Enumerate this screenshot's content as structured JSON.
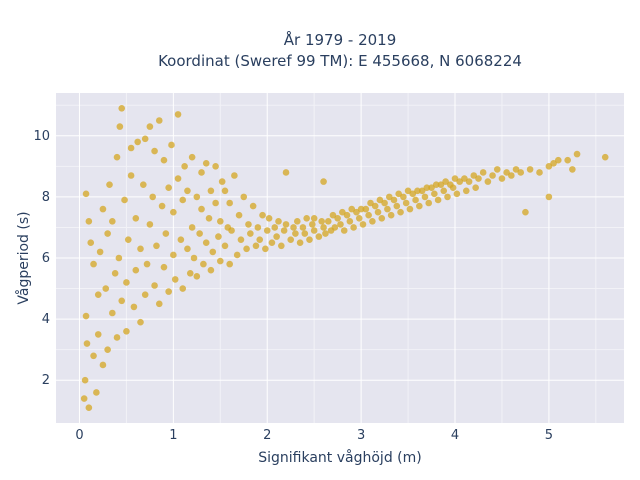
{
  "chart_data": {
    "type": "scatter",
    "title_line1": "År 1979 - 2019",
    "title_line2": "Koordinat (Sweref 99 TM): E 455668, N 6068224",
    "xlabel": "Signifikant våghöjd (m)",
    "ylabel": "Vågperiod (s)",
    "xlim": [
      -0.25,
      5.8
    ],
    "ylim": [
      0.6,
      11.4
    ],
    "x_ticks": [
      0,
      1,
      2,
      3,
      4,
      5
    ],
    "x_tick_labels": [
      "0",
      "1",
      "2",
      "3",
      "4",
      "5"
    ],
    "y_ticks": [
      2,
      4,
      6,
      8,
      10
    ],
    "y_tick_labels": [
      "2",
      "4",
      "6",
      "8",
      "10"
    ],
    "x_minor_ticks": [
      0.5,
      1.5,
      2.5,
      3.5,
      4.5,
      5.5
    ],
    "y_minor_ticks": [
      3,
      5,
      7,
      9,
      11
    ],
    "grid": true,
    "marker_color": "#d4a521",
    "plot_background": "#e5e5ef",
    "series": [
      {
        "points": [
          [
            0.05,
            1.4
          ],
          [
            0.06,
            2.0
          ],
          [
            0.07,
            4.1
          ],
          [
            0.07,
            8.1
          ],
          [
            0.08,
            3.2
          ],
          [
            0.1,
            1.1
          ],
          [
            0.1,
            7.2
          ],
          [
            0.12,
            6.5
          ],
          [
            0.15,
            5.8
          ],
          [
            0.15,
            2.8
          ],
          [
            0.18,
            1.6
          ],
          [
            0.2,
            3.5
          ],
          [
            0.2,
            4.8
          ],
          [
            0.22,
            6.2
          ],
          [
            0.25,
            7.6
          ],
          [
            0.25,
            2.5
          ],
          [
            0.28,
            5.0
          ],
          [
            0.3,
            3.0
          ],
          [
            0.3,
            6.8
          ],
          [
            0.32,
            8.4
          ],
          [
            0.35,
            4.2
          ],
          [
            0.35,
            7.2
          ],
          [
            0.38,
            5.5
          ],
          [
            0.4,
            3.4
          ],
          [
            0.4,
            9.3
          ],
          [
            0.42,
            6.0
          ],
          [
            0.43,
            10.3
          ],
          [
            0.45,
            4.6
          ],
          [
            0.45,
            10.9
          ],
          [
            0.48,
            7.9
          ],
          [
            0.5,
            3.6
          ],
          [
            0.5,
            5.2
          ],
          [
            0.52,
            6.6
          ],
          [
            0.55,
            9.6
          ],
          [
            0.55,
            8.7
          ],
          [
            0.58,
            4.4
          ],
          [
            0.6,
            7.3
          ],
          [
            0.6,
            5.6
          ],
          [
            0.62,
            9.8
          ],
          [
            0.65,
            3.9
          ],
          [
            0.65,
            6.3
          ],
          [
            0.68,
            8.4
          ],
          [
            0.7,
            9.9
          ],
          [
            0.7,
            4.8
          ],
          [
            0.72,
            5.8
          ],
          [
            0.75,
            7.1
          ],
          [
            0.75,
            10.3
          ],
          [
            0.78,
            8.0
          ],
          [
            0.8,
            5.1
          ],
          [
            0.8,
            9.5
          ],
          [
            0.82,
            6.4
          ],
          [
            0.85,
            10.5
          ],
          [
            0.85,
            4.5
          ],
          [
            0.88,
            7.7
          ],
          [
            0.9,
            5.7
          ],
          [
            0.9,
            9.2
          ],
          [
            0.92,
            6.8
          ],
          [
            0.95,
            8.3
          ],
          [
            0.95,
            4.9
          ],
          [
            0.98,
            9.7
          ],
          [
            1.0,
            6.1
          ],
          [
            1.0,
            7.5
          ],
          [
            1.02,
            5.3
          ],
          [
            1.05,
            10.7
          ],
          [
            1.05,
            8.6
          ],
          [
            1.08,
            6.6
          ],
          [
            1.1,
            5.0
          ],
          [
            1.1,
            7.9
          ],
          [
            1.12,
            9.0
          ],
          [
            1.15,
            6.3
          ],
          [
            1.15,
            8.2
          ],
          [
            1.18,
            5.5
          ],
          [
            1.2,
            7.0
          ],
          [
            1.2,
            9.3
          ],
          [
            1.22,
            6.0
          ],
          [
            1.25,
            8.0
          ],
          [
            1.25,
            5.4
          ],
          [
            1.28,
            6.8
          ],
          [
            1.3,
            7.6
          ],
          [
            1.3,
            8.8
          ],
          [
            1.32,
            5.8
          ],
          [
            1.35,
            6.5
          ],
          [
            1.35,
            9.1
          ],
          [
            1.38,
            7.3
          ],
          [
            1.4,
            5.6
          ],
          [
            1.4,
            8.2
          ],
          [
            1.42,
            6.2
          ],
          [
            1.45,
            7.8
          ],
          [
            1.45,
            9.0
          ],
          [
            1.48,
            6.7
          ],
          [
            1.5,
            5.9
          ],
          [
            1.5,
            7.2
          ],
          [
            1.52,
            8.5
          ],
          [
            1.55,
            6.4
          ],
          [
            1.55,
            8.2
          ],
          [
            1.58,
            7.0
          ],
          [
            1.6,
            5.8
          ],
          [
            1.6,
            7.8
          ],
          [
            1.62,
            6.9
          ],
          [
            1.65,
            8.7
          ],
          [
            1.68,
            6.1
          ],
          [
            1.7,
            7.4
          ],
          [
            1.72,
            6.6
          ],
          [
            1.75,
            8.0
          ],
          [
            1.78,
            6.3
          ],
          [
            1.8,
            7.1
          ],
          [
            1.82,
            6.8
          ],
          [
            1.85,
            7.7
          ],
          [
            1.88,
            6.4
          ],
          [
            1.9,
            7.0
          ],
          [
            1.92,
            6.6
          ],
          [
            1.95,
            7.4
          ],
          [
            1.98,
            6.3
          ],
          [
            2.0,
            6.9
          ],
          [
            2.02,
            7.3
          ],
          [
            2.05,
            6.5
          ],
          [
            2.08,
            7.0
          ],
          [
            2.1,
            6.7
          ],
          [
            2.12,
            7.2
          ],
          [
            2.15,
            6.4
          ],
          [
            2.18,
            6.9
          ],
          [
            2.2,
            8.8
          ],
          [
            2.2,
            7.1
          ],
          [
            2.25,
            6.6
          ],
          [
            2.28,
            7.0
          ],
          [
            2.3,
            6.8
          ],
          [
            2.32,
            7.2
          ],
          [
            2.35,
            6.5
          ],
          [
            2.38,
            7.0
          ],
          [
            2.4,
            6.8
          ],
          [
            2.42,
            7.3
          ],
          [
            2.45,
            6.6
          ],
          [
            2.48,
            7.1
          ],
          [
            2.5,
            6.9
          ],
          [
            2.5,
            7.3
          ],
          [
            2.55,
            6.7
          ],
          [
            2.58,
            7.2
          ],
          [
            2.6,
            7.0
          ],
          [
            2.6,
            8.5
          ],
          [
            2.62,
            6.8
          ],
          [
            2.65,
            7.2
          ],
          [
            2.68,
            6.9
          ],
          [
            2.7,
            7.4
          ],
          [
            2.72,
            7.0
          ],
          [
            2.75,
            7.3
          ],
          [
            2.78,
            7.1
          ],
          [
            2.8,
            7.5
          ],
          [
            2.82,
            6.9
          ],
          [
            2.85,
            7.4
          ],
          [
            2.88,
            7.2
          ],
          [
            2.9,
            7.6
          ],
          [
            2.92,
            7.0
          ],
          [
            2.95,
            7.5
          ],
          [
            2.98,
            7.3
          ],
          [
            3.0,
            7.6
          ],
          [
            3.02,
            7.1
          ],
          [
            3.05,
            7.6
          ],
          [
            3.08,
            7.4
          ],
          [
            3.1,
            7.8
          ],
          [
            3.12,
            7.2
          ],
          [
            3.15,
            7.7
          ],
          [
            3.18,
            7.5
          ],
          [
            3.2,
            7.9
          ],
          [
            3.22,
            7.3
          ],
          [
            3.25,
            7.8
          ],
          [
            3.28,
            7.6
          ],
          [
            3.3,
            8.0
          ],
          [
            3.32,
            7.4
          ],
          [
            3.35,
            7.9
          ],
          [
            3.38,
            7.7
          ],
          [
            3.4,
            8.1
          ],
          [
            3.42,
            7.5
          ],
          [
            3.45,
            8.0
          ],
          [
            3.48,
            7.8
          ],
          [
            3.5,
            8.2
          ],
          [
            3.52,
            7.6
          ],
          [
            3.55,
            8.1
          ],
          [
            3.58,
            7.9
          ],
          [
            3.6,
            8.2
          ],
          [
            3.62,
            7.7
          ],
          [
            3.65,
            8.2
          ],
          [
            3.68,
            8.0
          ],
          [
            3.7,
            8.3
          ],
          [
            3.72,
            7.8
          ],
          [
            3.75,
            8.3
          ],
          [
            3.78,
            8.1
          ],
          [
            3.8,
            8.4
          ],
          [
            3.82,
            7.9
          ],
          [
            3.85,
            8.4
          ],
          [
            3.88,
            8.2
          ],
          [
            3.9,
            8.5
          ],
          [
            3.92,
            8.0
          ],
          [
            3.95,
            8.4
          ],
          [
            3.98,
            8.3
          ],
          [
            4.0,
            8.6
          ],
          [
            4.02,
            8.1
          ],
          [
            4.05,
            8.5
          ],
          [
            4.1,
            8.6
          ],
          [
            4.12,
            8.2
          ],
          [
            4.15,
            8.5
          ],
          [
            4.2,
            8.7
          ],
          [
            4.22,
            8.3
          ],
          [
            4.25,
            8.6
          ],
          [
            4.3,
            8.8
          ],
          [
            4.35,
            8.5
          ],
          [
            4.4,
            8.7
          ],
          [
            4.45,
            8.9
          ],
          [
            4.5,
            8.6
          ],
          [
            4.55,
            8.8
          ],
          [
            4.6,
            8.7
          ],
          [
            4.65,
            8.9
          ],
          [
            4.7,
            8.8
          ],
          [
            4.75,
            7.5
          ],
          [
            4.8,
            8.9
          ],
          [
            4.9,
            8.8
          ],
          [
            5.0,
            9.0
          ],
          [
            5.0,
            8.0
          ],
          [
            5.05,
            9.1
          ],
          [
            5.1,
            9.2
          ],
          [
            5.2,
            9.2
          ],
          [
            5.25,
            8.9
          ],
          [
            5.3,
            9.4
          ],
          [
            5.6,
            9.3
          ]
        ]
      }
    ]
  }
}
